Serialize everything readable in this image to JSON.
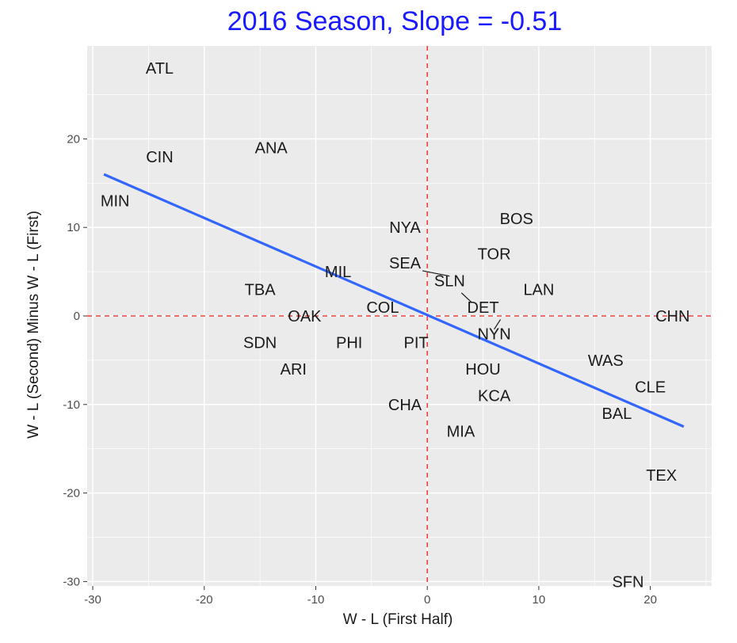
{
  "chart_data": {
    "type": "scatter",
    "title": "2016 Season, Slope =  -0.51",
    "xlabel": "W - L (First Half)",
    "ylabel": "W - L (Second) Minus W - L (First)",
    "xlim": [
      -30.5,
      25.5
    ],
    "ylim": [
      -30.5,
      30.5
    ],
    "x_ticks": [
      -30,
      -20,
      -10,
      0,
      10,
      20
    ],
    "y_ticks": [
      -30,
      -20,
      -10,
      0,
      10,
      20
    ],
    "x_tick_labels": [
      "-30",
      "-20",
      "-10",
      "0",
      "10",
      "20"
    ],
    "y_tick_labels": [
      "-30",
      "-20",
      "-10",
      "0",
      "10",
      "20"
    ],
    "grid": true,
    "reference_lines": {
      "x": 0,
      "y": 0,
      "style": "dashed",
      "color": "#f04040"
    },
    "fit_line": {
      "slope": -0.51,
      "x_range": [
        -29,
        23
      ],
      "y_range": [
        16,
        -12.5
      ],
      "color": "#3366ff"
    },
    "colors": {
      "title": "#1a1aff",
      "panel": "#ebebeb",
      "grid": "#ffffff",
      "points": "#1a1a1a"
    },
    "points": [
      {
        "team": "ATL",
        "x": -24,
        "y": 28
      },
      {
        "team": "CIN",
        "x": -24,
        "y": 18
      },
      {
        "team": "ANA",
        "x": -14,
        "y": 19
      },
      {
        "team": "MIN",
        "x": -28,
        "y": 13
      },
      {
        "team": "NYA",
        "x": -2,
        "y": 10
      },
      {
        "team": "BOS",
        "x": 8,
        "y": 11
      },
      {
        "team": "SEA",
        "x": -2,
        "y": 6
      },
      {
        "team": "TOR",
        "x": 6,
        "y": 7
      },
      {
        "team": "MIL",
        "x": -8,
        "y": 5
      },
      {
        "team": "SLN",
        "x": 2,
        "y": 4
      },
      {
        "team": "TBA",
        "x": -15,
        "y": 3
      },
      {
        "team": "LAN",
        "x": 10,
        "y": 3
      },
      {
        "team": "COL",
        "x": -4,
        "y": 1
      },
      {
        "team": "DET",
        "x": 5,
        "y": 1
      },
      {
        "team": "OAK",
        "x": -11,
        "y": 0
      },
      {
        "team": "CHN",
        "x": 22,
        "y": 0
      },
      {
        "team": "NYN",
        "x": 6,
        "y": -2
      },
      {
        "team": "SDN",
        "x": -15,
        "y": -3
      },
      {
        "team": "PHI",
        "x": -7,
        "y": -3
      },
      {
        "team": "PIT",
        "x": -1,
        "y": -3
      },
      {
        "team": "ARI",
        "x": -12,
        "y": -6
      },
      {
        "team": "HOU",
        "x": 5,
        "y": -6
      },
      {
        "team": "WAS",
        "x": 16,
        "y": -5
      },
      {
        "team": "CLE",
        "x": 20,
        "y": -8
      },
      {
        "team": "KCA",
        "x": 6,
        "y": -9
      },
      {
        "team": "CHA",
        "x": -2,
        "y": -10
      },
      {
        "team": "BAL",
        "x": 17,
        "y": -11
      },
      {
        "team": "MIA",
        "x": 3,
        "y": -13
      },
      {
        "team": "TEX",
        "x": 21,
        "y": -18
      },
      {
        "team": "SFN",
        "x": 18,
        "y": -30
      }
    ]
  }
}
